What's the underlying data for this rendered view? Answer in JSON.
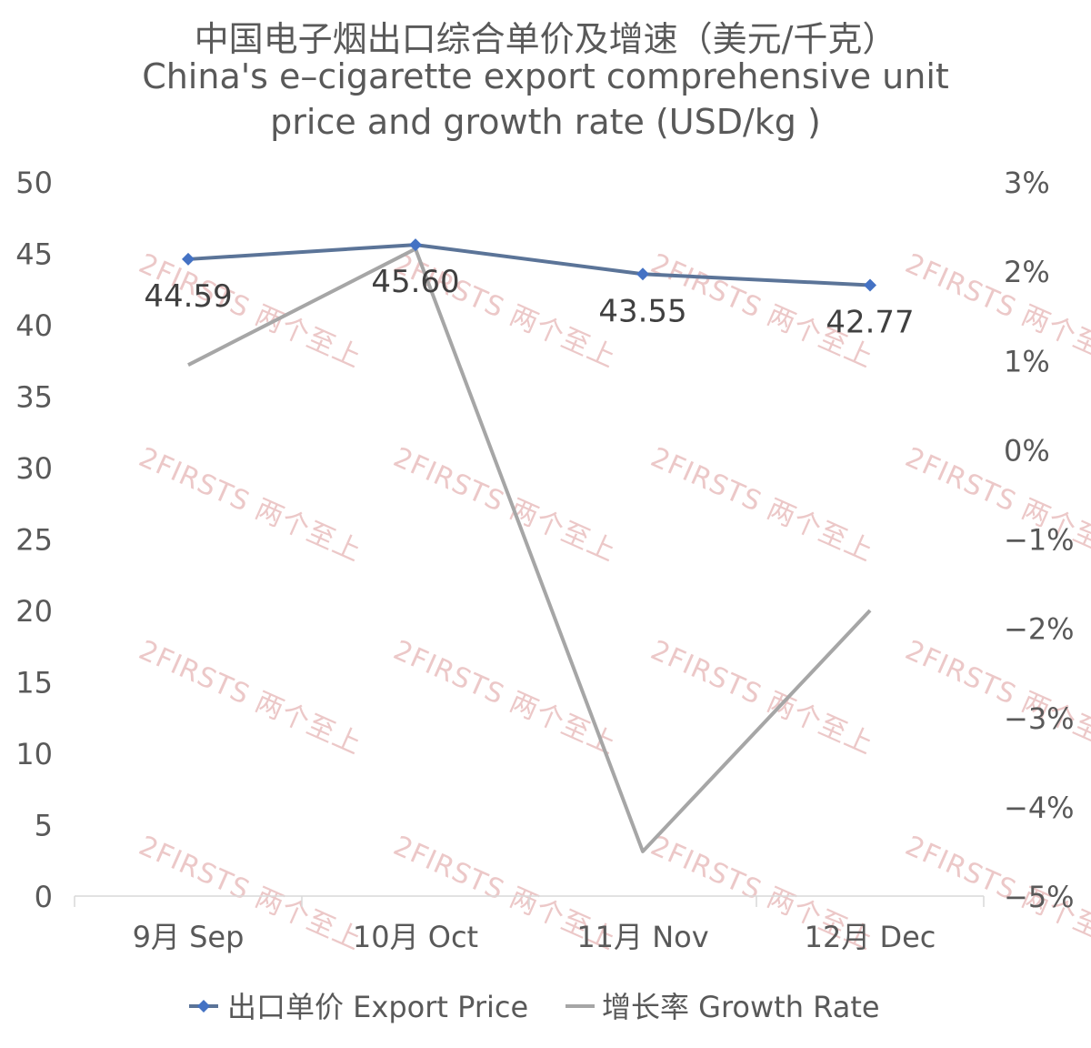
{
  "title_zh": "中国电子烟出口综合单价及增速（美元/千克）",
  "title_en_line1": "China's e–cigarette export comprehensive unit",
  "title_en_line2": "price and growth rate (USD/kg )",
  "watermark": "2FIRSTS 两个至上",
  "colors": {
    "price": "#4472C4",
    "price_line": "#5B7498",
    "growth": "#A6A6A6",
    "text": "#595959"
  },
  "chart_data": {
    "type": "line",
    "categories": [
      "9月 Sep",
      "10月 Oct",
      "11月 Nov",
      "12月 Dec"
    ],
    "series": [
      {
        "name": "出口单价 Export Price",
        "axis": "left",
        "values": [
          44.59,
          45.6,
          43.55,
          42.77
        ],
        "labels": [
          "44.59",
          "45.60",
          "43.55",
          "42.77"
        ],
        "marker": "diamond"
      },
      {
        "name": "增长率 Growth Rate",
        "axis": "right",
        "values": [
          0.95,
          2.25,
          -4.5,
          -1.8
        ]
      }
    ],
    "y_left": {
      "min": 0,
      "max": 50,
      "ticks": [
        0,
        5,
        10,
        15,
        20,
        25,
        30,
        35,
        40,
        45,
        50
      ]
    },
    "y_right": {
      "min": -5,
      "max": 3,
      "ticks": [
        -5,
        -4,
        -3,
        -2,
        -1,
        0,
        1,
        2,
        3
      ],
      "tick_labels": [
        "−5%",
        "−4%",
        "−3%",
        "−2%",
        "−1%",
        "0%",
        "1%",
        "2%",
        "3%"
      ]
    },
    "grid": false,
    "legend": "bottom"
  }
}
